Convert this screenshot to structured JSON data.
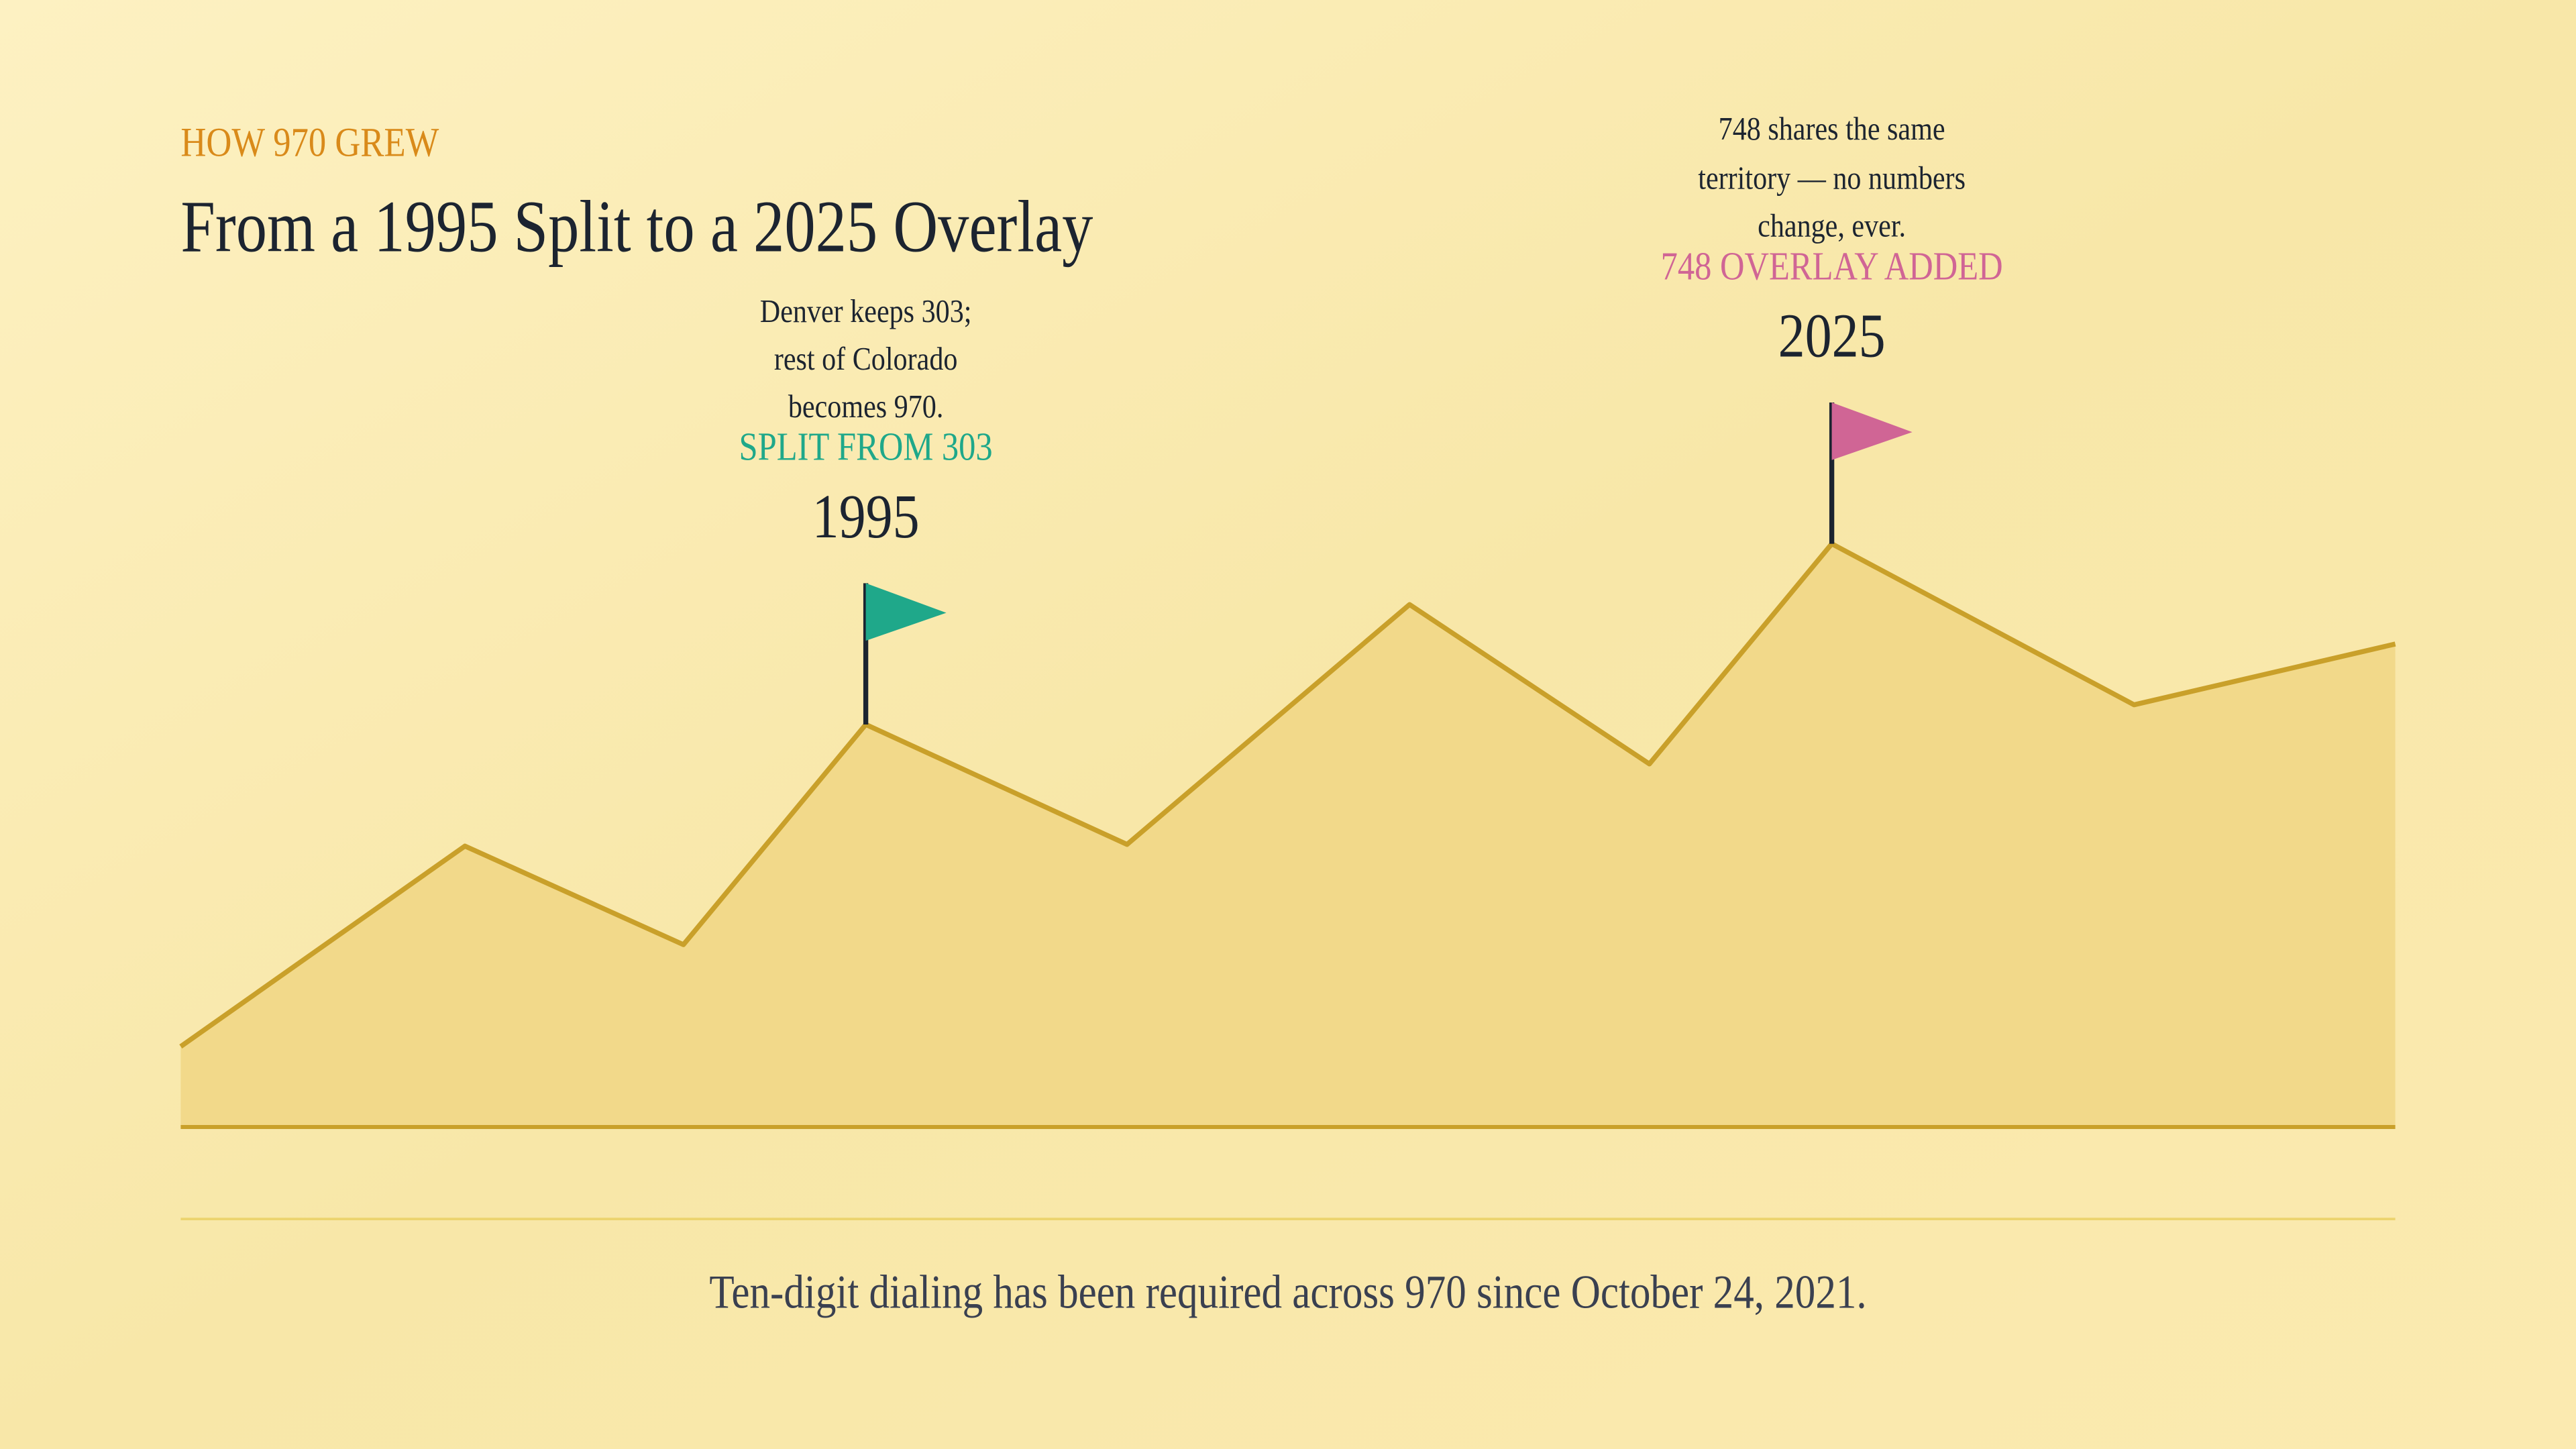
{
  "header": {
    "eyebrow": "HOW 970 GREW",
    "title": "From a 1995 Split to a 2025 Overlay"
  },
  "milestones": [
    {
      "note": [
        "Denver keeps 303;",
        "rest of Colorado",
        "becomes 970."
      ],
      "label": "SPLIT FROM 303",
      "year": "1995"
    },
    {
      "note": [
        "748 shares the same",
        "territory — no numbers",
        "change, ever."
      ],
      "label": "748 OVERLAY ADDED",
      "year": "2025"
    }
  ],
  "footer": {
    "note": "Ten-digit dialing has been required across 970 since October 24, 2021."
  }
}
